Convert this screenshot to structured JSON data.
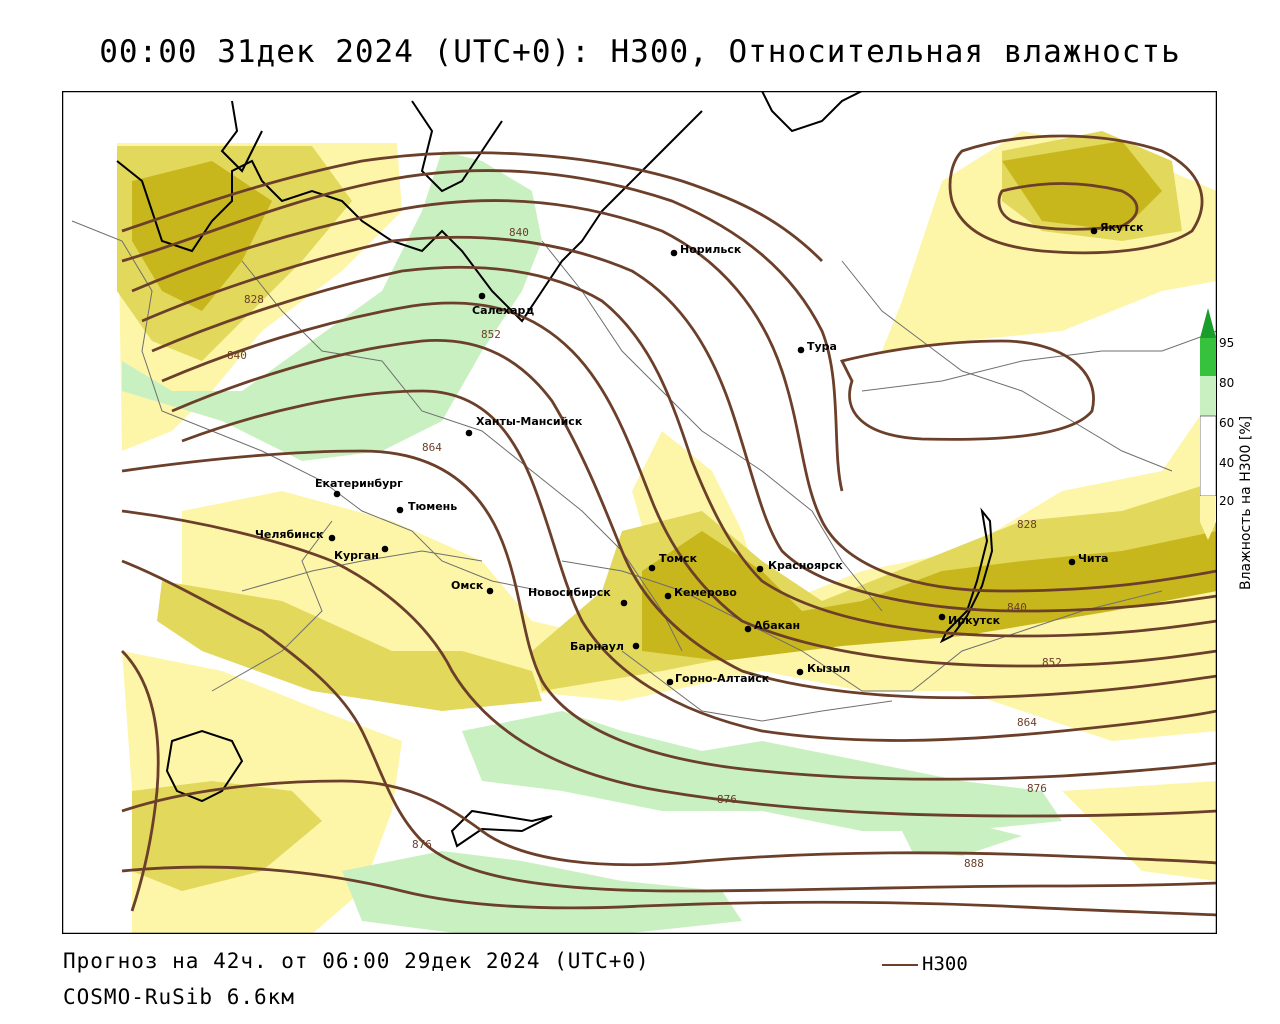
{
  "title": "00:00 31дек 2024 (UTC+0): H300, Относительная влажность",
  "forecast_info": "Прогноз на 42ч. от 06:00 29дек 2024 (UTC+0)",
  "model": "COSMO-RuSib 6.6км",
  "legend": {
    "line_label": "H300"
  },
  "colorbar": {
    "title": "Влажность на H300 [%]",
    "ticks": [
      "20",
      "40",
      "60",
      "80",
      "95"
    ],
    "colors": {
      "low": "#fdf6a8",
      "mid": "#e1d85c",
      "high": "#c8b71c",
      "green_low": "#c9f0c0",
      "green_mid": "#7fe07a",
      "green_high": "#1a9e2b"
    }
  },
  "colors": {
    "contour": "#6b3f2a",
    "coast": "#000000",
    "border": "#6f6f6f"
  },
  "cities": [
    {
      "name": "Якутск"
    },
    {
      "name": "Норильск"
    },
    {
      "name": "Салехард"
    },
    {
      "name": "Тура"
    },
    {
      "name": "Ханты-Мансийск"
    },
    {
      "name": "Екатеринбург"
    },
    {
      "name": "Тюмень"
    },
    {
      "name": "Челябинск"
    },
    {
      "name": "Курган"
    },
    {
      "name": "Омск"
    },
    {
      "name": "Новосибирск"
    },
    {
      "name": "Томск"
    },
    {
      "name": "Кемерово"
    },
    {
      "name": "Красноярск"
    },
    {
      "name": "Абакан"
    },
    {
      "name": "Барнаул"
    },
    {
      "name": "Горно-Алтайск"
    },
    {
      "name": "Кызыл"
    },
    {
      "name": "Иркутск"
    },
    {
      "name": "Чита"
    }
  ],
  "contour_labels": [
    "828",
    "840",
    "840",
    "852",
    "864",
    "828",
    "840",
    "852",
    "864",
    "876",
    "876",
    "876",
    "888"
  ]
}
